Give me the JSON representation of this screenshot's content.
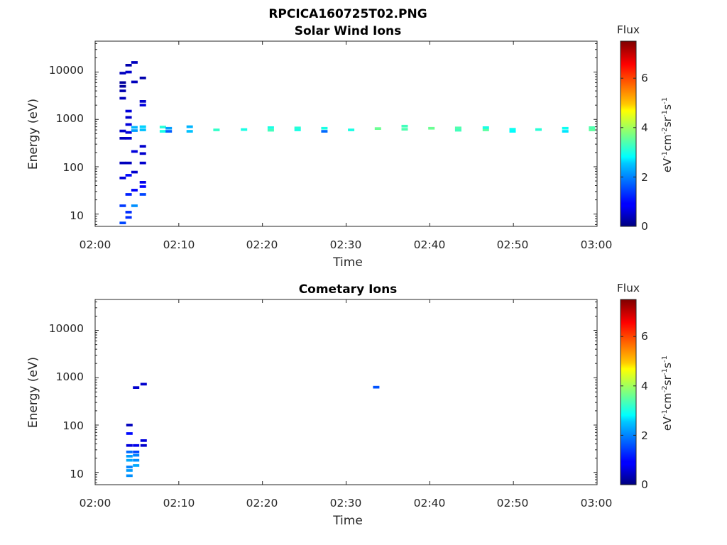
{
  "figure_title": "RPCICA160725T02.PNG",
  "colorbar": {
    "title": "Flux",
    "ticks": [
      "0",
      "2",
      "4",
      "6"
    ],
    "label_parts": [
      "eV",
      "-1",
      "cm",
      "-2",
      "sr",
      "-1",
      "s",
      "-1"
    ],
    "range": [
      0,
      7.5
    ]
  },
  "chart_data": [
    {
      "type": "heatmap",
      "title": "Solar Wind Ions",
      "xlabel": "Time",
      "ylabel": "Energy (eV)",
      "x_ticks": [
        "02:00",
        "02:10",
        "02:20",
        "02:30",
        "02:40",
        "02:50",
        "03:00"
      ],
      "y_ticks": [
        "10",
        "100",
        "1000",
        "10000"
      ],
      "xlim_minutes": [
        0,
        60
      ],
      "ylim": [
        5.5,
        45000
      ],
      "yscale": "log",
      "cells": [
        {
          "t": 3.3,
          "e": 6.5,
          "f": 1.5
        },
        {
          "t": 3.3,
          "e": 15,
          "f": 1.4
        },
        {
          "t": 4.0,
          "e": 11,
          "f": 1.3
        },
        {
          "t": 4.0,
          "e": 8.5,
          "f": 1.3
        },
        {
          "t": 4.7,
          "e": 15,
          "f": 2.1
        },
        {
          "t": 4.0,
          "e": 26,
          "f": 1.2
        },
        {
          "t": 4.7,
          "e": 32,
          "f": 0.8
        },
        {
          "t": 5.7,
          "e": 26,
          "f": 1.5
        },
        {
          "t": 5.7,
          "e": 38,
          "f": 0.9
        },
        {
          "t": 5.7,
          "e": 47,
          "f": 0.7
        },
        {
          "t": 3.3,
          "e": 58,
          "f": 0.6
        },
        {
          "t": 4.0,
          "e": 66,
          "f": 1.0
        },
        {
          "t": 4.7,
          "e": 77,
          "f": 0.5
        },
        {
          "t": 3.3,
          "e": 120,
          "f": 0.4
        },
        {
          "t": 4.0,
          "e": 120,
          "f": 0.4
        },
        {
          "t": 5.7,
          "e": 120,
          "f": 0.5
        },
        {
          "t": 4.7,
          "e": 210,
          "f": 0.6
        },
        {
          "t": 5.7,
          "e": 190,
          "f": 0.5
        },
        {
          "t": 5.7,
          "e": 270,
          "f": 0.5
        },
        {
          "t": 3.3,
          "e": 400,
          "f": 0.4
        },
        {
          "t": 4.0,
          "e": 400,
          "f": 0.5
        },
        {
          "t": 4.0,
          "e": 530,
          "f": 0.6
        },
        {
          "t": 3.3,
          "e": 570,
          "f": 0.5
        },
        {
          "t": 4.7,
          "e": 580,
          "f": 2.2
        },
        {
          "t": 5.7,
          "e": 600,
          "f": 2.5
        },
        {
          "t": 4.7,
          "e": 680,
          "f": 2.4
        },
        {
          "t": 5.7,
          "e": 700,
          "f": 2.6
        },
        {
          "t": 4.0,
          "e": 780,
          "f": 0.6
        },
        {
          "t": 4.0,
          "e": 1100,
          "f": 0.5
        },
        {
          "t": 4.0,
          "e": 1500,
          "f": 0.6
        },
        {
          "t": 5.7,
          "e": 2000,
          "f": 0.6
        },
        {
          "t": 5.7,
          "e": 2400,
          "f": 0.5
        },
        {
          "t": 3.3,
          "e": 2800,
          "f": 0.4
        },
        {
          "t": 3.3,
          "e": 4000,
          "f": 0.3
        },
        {
          "t": 3.3,
          "e": 5000,
          "f": 0.2
        },
        {
          "t": 3.3,
          "e": 6000,
          "f": 0.2
        },
        {
          "t": 4.7,
          "e": 6200,
          "f": 0.4
        },
        {
          "t": 5.7,
          "e": 7500,
          "f": 0.3
        },
        {
          "t": 3.3,
          "e": 9500,
          "f": 0.4
        },
        {
          "t": 4.0,
          "e": 10000,
          "f": 0.5
        },
        {
          "t": 4.0,
          "e": 14000,
          "f": 0.3
        },
        {
          "t": 4.7,
          "e": 16000,
          "f": 0.4
        },
        {
          "t": 8.1,
          "e": 560,
          "f": 3.0
        },
        {
          "t": 8.1,
          "e": 690,
          "f": 3.1
        },
        {
          "t": 8.8,
          "e": 560,
          "f": 1.7
        },
        {
          "t": 8.8,
          "e": 650,
          "f": 2.2
        },
        {
          "t": 11.3,
          "e": 560,
          "f": 2.5
        },
        {
          "t": 11.3,
          "e": 700,
          "f": 2.4
        },
        {
          "t": 14.5,
          "e": 600,
          "f": 3.2
        },
        {
          "t": 17.8,
          "e": 610,
          "f": 3.0
        },
        {
          "t": 21.0,
          "e": 590,
          "f": 3.3
        },
        {
          "t": 21.0,
          "e": 670,
          "f": 3.0
        },
        {
          "t": 24.2,
          "e": 600,
          "f": 3.0
        },
        {
          "t": 24.2,
          "e": 660,
          "f": 3.1
        },
        {
          "t": 27.4,
          "e": 560,
          "f": 1.8
        },
        {
          "t": 27.4,
          "e": 650,
          "f": 3.0
        },
        {
          "t": 30.6,
          "e": 600,
          "f": 3.0
        },
        {
          "t": 33.8,
          "e": 640,
          "f": 3.6
        },
        {
          "t": 37.0,
          "e": 620,
          "f": 3.4
        },
        {
          "t": 37.0,
          "e": 720,
          "f": 3.3
        },
        {
          "t": 40.2,
          "e": 650,
          "f": 3.6
        },
        {
          "t": 43.4,
          "e": 590,
          "f": 3.3
        },
        {
          "t": 43.4,
          "e": 660,
          "f": 3.4
        },
        {
          "t": 46.7,
          "e": 600,
          "f": 3.5
        },
        {
          "t": 46.7,
          "e": 670,
          "f": 3.0
        },
        {
          "t": 49.9,
          "e": 560,
          "f": 2.8
        },
        {
          "t": 49.9,
          "e": 620,
          "f": 2.9
        },
        {
          "t": 53.0,
          "e": 610,
          "f": 3.1
        },
        {
          "t": 56.2,
          "e": 560,
          "f": 2.7
        },
        {
          "t": 56.2,
          "e": 650,
          "f": 2.9
        },
        {
          "t": 59.4,
          "e": 600,
          "f": 3.5
        },
        {
          "t": 59.4,
          "e": 670,
          "f": 3.4
        }
      ]
    },
    {
      "type": "heatmap",
      "title": "Cometary Ions",
      "xlabel": "Time",
      "ylabel": "Energy (eV)",
      "x_ticks": [
        "02:00",
        "02:10",
        "02:20",
        "02:30",
        "02:40",
        "02:50",
        "03:00"
      ],
      "y_ticks": [
        "10",
        "100",
        "1000",
        "10000"
      ],
      "xlim_minutes": [
        0,
        60
      ],
      "ylim": [
        5.5,
        45000
      ],
      "yscale": "log",
      "cells": [
        {
          "t": 4.1,
          "e": 8.5,
          "f": 2.1
        },
        {
          "t": 4.1,
          "e": 11,
          "f": 2.2
        },
        {
          "t": 4.1,
          "e": 13,
          "f": 2.0
        },
        {
          "t": 4.1,
          "e": 18,
          "f": 2.3
        },
        {
          "t": 4.1,
          "e": 22,
          "f": 2.2
        },
        {
          "t": 4.1,
          "e": 27,
          "f": 1.8
        },
        {
          "t": 4.9,
          "e": 14,
          "f": 2.3
        },
        {
          "t": 4.9,
          "e": 18,
          "f": 2.1
        },
        {
          "t": 4.9,
          "e": 23,
          "f": 2.0
        },
        {
          "t": 4.9,
          "e": 27,
          "f": 1.5
        },
        {
          "t": 4.1,
          "e": 37,
          "f": 0.6
        },
        {
          "t": 4.9,
          "e": 37,
          "f": 0.7
        },
        {
          "t": 5.8,
          "e": 37,
          "f": 0.5
        },
        {
          "t": 5.8,
          "e": 47,
          "f": 0.6
        },
        {
          "t": 4.1,
          "e": 66,
          "f": 1.0
        },
        {
          "t": 4.1,
          "e": 100,
          "f": 0.4
        },
        {
          "t": 4.9,
          "e": 620,
          "f": 0.5
        },
        {
          "t": 5.8,
          "e": 730,
          "f": 0.5
        },
        {
          "t": 33.6,
          "e": 630,
          "f": 1.6
        }
      ]
    }
  ]
}
